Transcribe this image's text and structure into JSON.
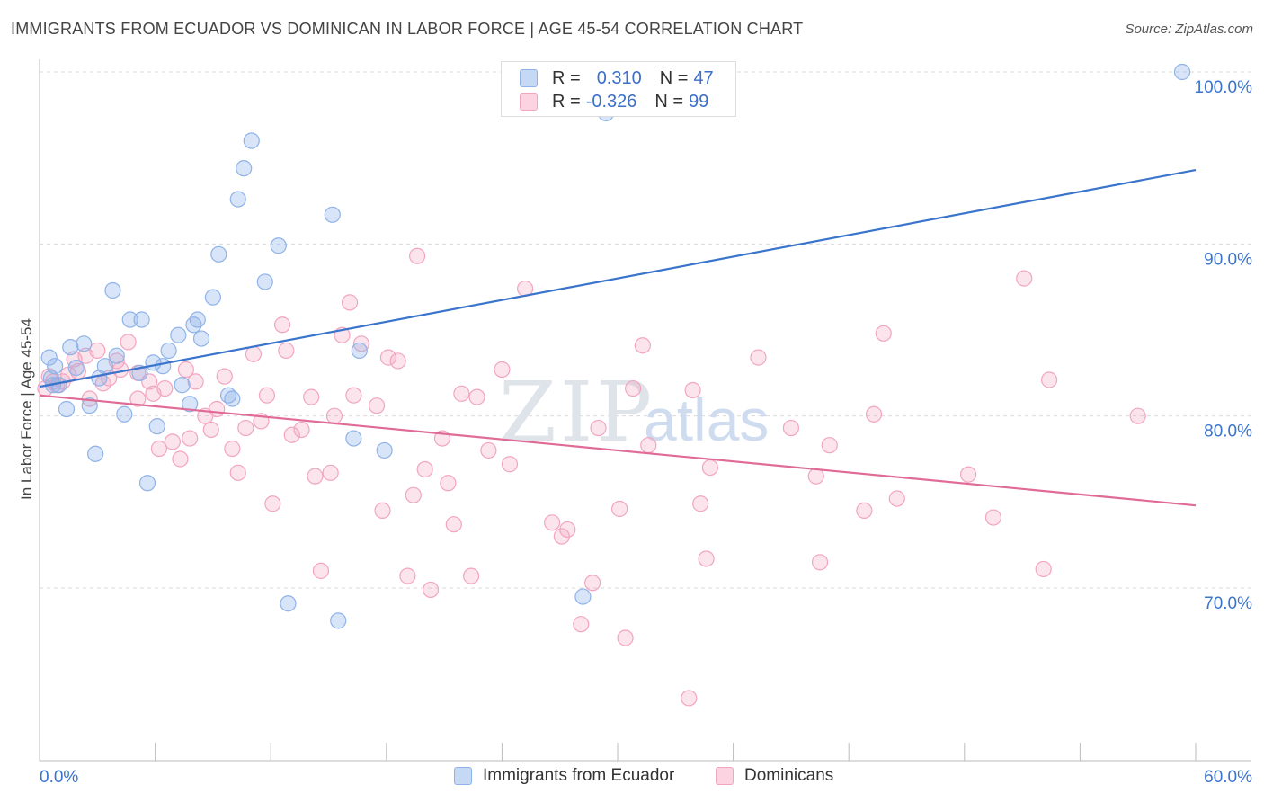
{
  "title": "IMMIGRANTS FROM ECUADOR VS DOMINICAN IN LABOR FORCE | AGE 45-54 CORRELATION CHART",
  "source": "Source: ZipAtlas.com",
  "watermark": {
    "zip": "ZIP",
    "atlas": "atlas"
  },
  "legend_top": {
    "rows": [
      {
        "r_label": "R =",
        "r_value": "0.310",
        "n_label": "N =",
        "n_value": "47",
        "color": "#8fb3e8"
      },
      {
        "r_label": "R =",
        "r_value": "-0.326",
        "n_label": "N =",
        "n_value": "99",
        "color": "#f2a5bf"
      }
    ]
  },
  "legend_bottom": {
    "items": [
      {
        "label": "Immigrants from Ecuador",
        "color": "#8fb3e8"
      },
      {
        "label": "Dominicans",
        "color": "#f2a5bf"
      }
    ]
  },
  "chart_data": {
    "type": "scatter",
    "title": "IMMIGRANTS FROM ECUADOR VS DOMINICAN IN LABOR FORCE | AGE 45-54 CORRELATION CHART",
    "xlabel": "",
    "ylabel": "In Labor Force | Age 45-54",
    "xlim": [
      0,
      60
    ],
    "ylim": [
      62,
      101.5
    ],
    "x_tick_labels": [
      "0.0%",
      "60.0%"
    ],
    "y_ticks": [
      70,
      80,
      90,
      100
    ],
    "y_tick_labels": [
      "70.0%",
      "80.0%",
      "90.0%",
      "100.0%"
    ],
    "grid": true,
    "colors": {
      "ecuador": "#8fb3e8",
      "ecuador_line": "#3a74cc",
      "dominican": "#f2a5bf",
      "dominican_line": "#e06b96",
      "tick_label": "#3a74cc"
    },
    "series": [
      {
        "name": "Immigrants from Ecuador",
        "points": [
          [
            0.5,
            83.4
          ],
          [
            0.6,
            82.2
          ],
          [
            0.7,
            81.8
          ],
          [
            0.8,
            82.9
          ],
          [
            1.0,
            81.8
          ],
          [
            1.4,
            80.4
          ],
          [
            1.6,
            84.0
          ],
          [
            1.9,
            82.8
          ],
          [
            2.3,
            84.2
          ],
          [
            2.6,
            80.6
          ],
          [
            2.9,
            77.8
          ],
          [
            3.1,
            82.2
          ],
          [
            3.4,
            82.9
          ],
          [
            3.8,
            87.3
          ],
          [
            4.0,
            83.5
          ],
          [
            4.4,
            80.1
          ],
          [
            4.7,
            85.6
          ],
          [
            5.2,
            82.5
          ],
          [
            5.3,
            85.6
          ],
          [
            5.6,
            76.1
          ],
          [
            5.9,
            83.1
          ],
          [
            6.1,
            79.4
          ],
          [
            6.4,
            82.9
          ],
          [
            6.7,
            83.8
          ],
          [
            7.2,
            84.7
          ],
          [
            7.4,
            81.8
          ],
          [
            7.8,
            80.7
          ],
          [
            8.0,
            85.3
          ],
          [
            8.2,
            85.6
          ],
          [
            8.4,
            84.5
          ],
          [
            9.0,
            86.9
          ],
          [
            9.3,
            89.4
          ],
          [
            9.8,
            81.2
          ],
          [
            10.0,
            81.0
          ],
          [
            10.3,
            92.6
          ],
          [
            10.6,
            94.4
          ],
          [
            11.0,
            96.0
          ],
          [
            11.7,
            87.8
          ],
          [
            12.4,
            89.9
          ],
          [
            12.9,
            69.1
          ],
          [
            15.2,
            91.7
          ],
          [
            15.5,
            68.1
          ],
          [
            16.3,
            78.7
          ],
          [
            16.6,
            83.8
          ],
          [
            17.9,
            78.0
          ],
          [
            28.2,
            69.5
          ],
          [
            29.4,
            97.6
          ],
          [
            59.3,
            100.0
          ]
        ]
      },
      {
        "name": "Dominicans",
        "points": [
          [
            0.3,
            81.6
          ],
          [
            0.5,
            82.3
          ],
          [
            0.7,
            82.0
          ],
          [
            0.9,
            81.8
          ],
          [
            1.2,
            82.0
          ],
          [
            1.5,
            82.4
          ],
          [
            1.8,
            83.3
          ],
          [
            2.0,
            82.6
          ],
          [
            2.4,
            83.5
          ],
          [
            2.6,
            81.0
          ],
          [
            3.0,
            83.8
          ],
          [
            3.3,
            81.9
          ],
          [
            3.6,
            82.2
          ],
          [
            4.0,
            83.2
          ],
          [
            4.2,
            82.7
          ],
          [
            4.6,
            84.3
          ],
          [
            5.1,
            82.5
          ],
          [
            5.1,
            81.0
          ],
          [
            5.7,
            82.0
          ],
          [
            5.9,
            81.3
          ],
          [
            6.2,
            78.1
          ],
          [
            6.5,
            81.6
          ],
          [
            6.9,
            78.5
          ],
          [
            7.3,
            77.5
          ],
          [
            7.6,
            82.7
          ],
          [
            7.8,
            78.7
          ],
          [
            8.1,
            82.0
          ],
          [
            8.6,
            80.0
          ],
          [
            8.9,
            79.2
          ],
          [
            9.2,
            80.4
          ],
          [
            9.6,
            82.3
          ],
          [
            10.0,
            78.1
          ],
          [
            10.3,
            76.7
          ],
          [
            10.7,
            79.3
          ],
          [
            11.1,
            83.6
          ],
          [
            11.5,
            79.7
          ],
          [
            11.8,
            81.2
          ],
          [
            12.1,
            74.9
          ],
          [
            12.6,
            85.3
          ],
          [
            12.8,
            83.8
          ],
          [
            13.1,
            78.9
          ],
          [
            13.6,
            79.2
          ],
          [
            14.1,
            81.1
          ],
          [
            14.3,
            76.5
          ],
          [
            14.6,
            71.0
          ],
          [
            15.1,
            76.7
          ],
          [
            15.3,
            80.0
          ],
          [
            15.7,
            84.7
          ],
          [
            16.1,
            86.6
          ],
          [
            16.3,
            81.2
          ],
          [
            16.7,
            84.2
          ],
          [
            17.5,
            80.6
          ],
          [
            17.8,
            74.5
          ],
          [
            18.1,
            83.4
          ],
          [
            18.6,
            83.2
          ],
          [
            19.1,
            70.7
          ],
          [
            19.4,
            75.4
          ],
          [
            19.6,
            89.3
          ],
          [
            20.0,
            76.9
          ],
          [
            20.3,
            69.9
          ],
          [
            20.9,
            78.7
          ],
          [
            21.2,
            76.1
          ],
          [
            21.5,
            73.7
          ],
          [
            21.9,
            81.3
          ],
          [
            22.4,
            70.7
          ],
          [
            22.7,
            81.1
          ],
          [
            23.3,
            78.0
          ],
          [
            24.0,
            82.7
          ],
          [
            24.4,
            77.2
          ],
          [
            25.2,
            87.4
          ],
          [
            26.6,
            73.8
          ],
          [
            27.1,
            73.0
          ],
          [
            27.4,
            73.4
          ],
          [
            28.1,
            67.9
          ],
          [
            28.7,
            70.3
          ],
          [
            29.0,
            79.3
          ],
          [
            30.1,
            74.6
          ],
          [
            30.4,
            67.1
          ],
          [
            30.8,
            81.6
          ],
          [
            31.3,
            84.1
          ],
          [
            31.6,
            78.3
          ],
          [
            33.7,
            63.6
          ],
          [
            33.9,
            81.5
          ],
          [
            34.3,
            74.9
          ],
          [
            34.6,
            71.7
          ],
          [
            34.8,
            77.0
          ],
          [
            37.3,
            83.4
          ],
          [
            39.0,
            79.3
          ],
          [
            40.3,
            76.5
          ],
          [
            40.5,
            71.5
          ],
          [
            41.0,
            78.3
          ],
          [
            42.8,
            74.5
          ],
          [
            43.3,
            80.1
          ],
          [
            43.8,
            84.8
          ],
          [
            44.5,
            75.2
          ],
          [
            48.2,
            76.6
          ],
          [
            49.5,
            74.1
          ],
          [
            51.1,
            88.0
          ],
          [
            52.1,
            71.1
          ],
          [
            52.4,
            82.1
          ],
          [
            57.0,
            80.0
          ]
        ]
      }
    ],
    "trendlines": [
      {
        "series": "Immigrants from Ecuador",
        "x": [
          0,
          60
        ],
        "y": [
          81.7,
          94.3
        ]
      },
      {
        "series": "Dominicans",
        "x": [
          0,
          60
        ],
        "y": [
          81.2,
          74.8
        ]
      }
    ]
  }
}
